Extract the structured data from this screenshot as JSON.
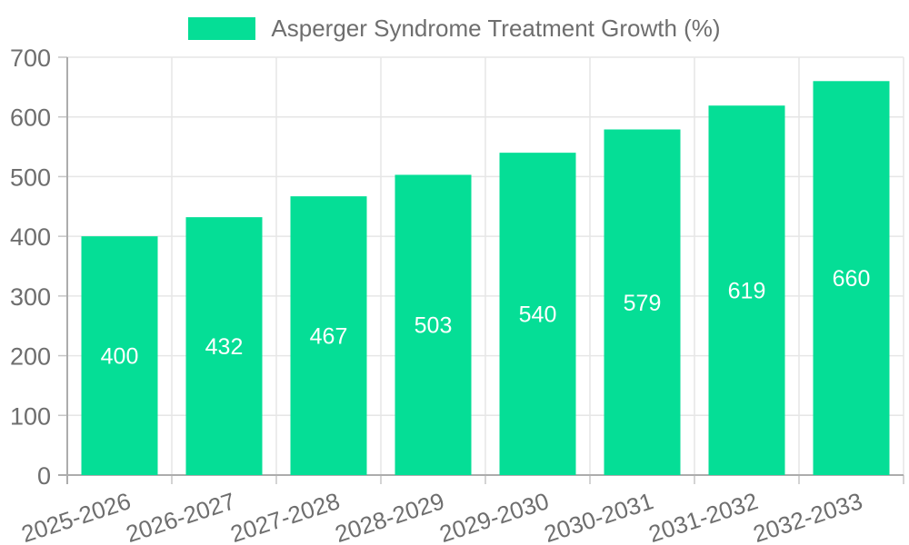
{
  "legend": {
    "label": "Asperger Syndrome Treatment Growth (%)"
  },
  "chart_data": {
    "type": "bar",
    "title": "Asperger Syndrome Treatment Growth (%)",
    "categories": [
      "2025-2026",
      "2026-2027",
      "2027-2028",
      "2028-2029",
      "2029-2030",
      "2030-2031",
      "2031-2032",
      "2032-2033"
    ],
    "values": [
      400,
      432,
      467,
      503,
      540,
      579,
      619,
      660
    ],
    "xlabel": "",
    "ylabel": "",
    "ylim": [
      0,
      700
    ],
    "yticks": [
      0,
      100,
      200,
      300,
      400,
      500,
      600,
      700
    ],
    "grid": true,
    "legend_position": "top",
    "colors": {
      "bar": "#05DE96",
      "value_label": "#ffffff",
      "tick_label": "#6e6e6e",
      "grid_line": "#e6e6e6",
      "axis_line": "#acacac",
      "tick_mark": "#c6c6c6",
      "background": "#ffffff"
    }
  }
}
